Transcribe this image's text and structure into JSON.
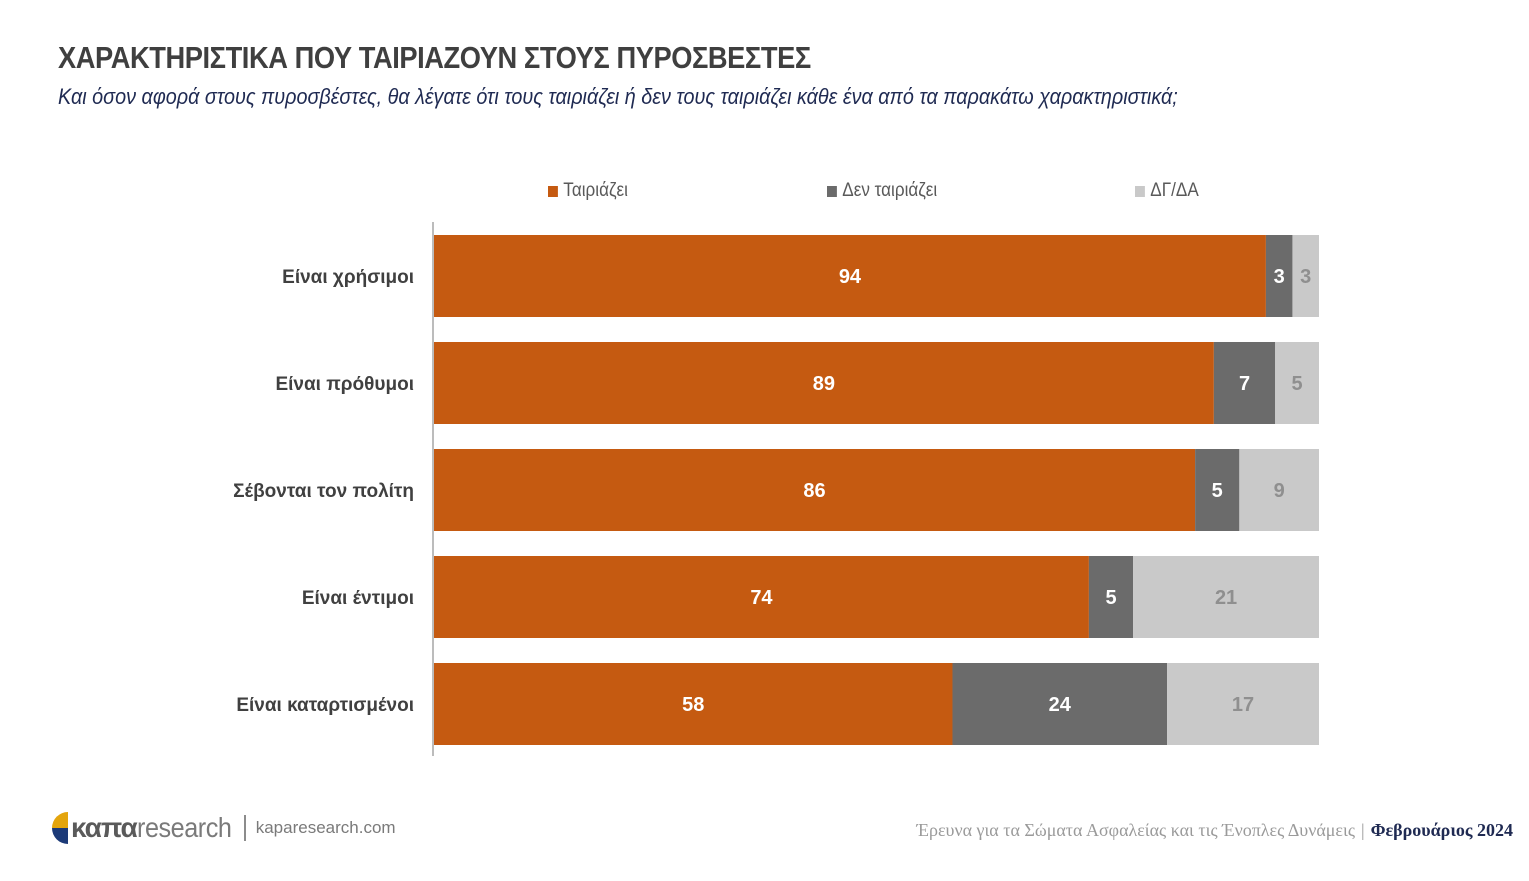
{
  "header": {
    "title": "ΧΑΡΑΚΤΗΡΙΣΤΙΚΑ ΠΟΥ ΤΑΙΡΙΑΖΟΥΝ ΣΤΟΥΣ ΠΥΡΟΣΒΕΣΤΕΣ",
    "subtitle": "Και όσον αφορά στους πυροσβέστες, θα λέγατε ότι τους ταιριάζει ή δεν τους ταιριάζει κάθε ένα από τα παρακάτω χαρακτηριστικά;"
  },
  "chart_data": {
    "type": "bar",
    "orientation": "horizontal",
    "stacked": true,
    "title": "ΧΑΡΑΚΤΗΡΙΣΤΙΚΑ ΠΟΥ ΤΑΙΡΙΑΖΟΥΝ ΣΤΟΥΣ ΠΥΡΟΣΒΕΣΤΕΣ",
    "xlabel": "",
    "ylabel": "",
    "xlim": [
      0,
      100
    ],
    "grid": false,
    "legend_position": "top",
    "categories": [
      "Είναι χρήσιμοι",
      "Είναι πρόθυμοι",
      "Σέβονται τον πολίτη",
      "Είναι έντιμοι",
      "Είναι καταρτισμένοι"
    ],
    "series": [
      {
        "name": "Ταιριάζει",
        "color": "#c55a11",
        "label_color": "#ffffff",
        "values": [
          94,
          89,
          86,
          74,
          58
        ]
      },
      {
        "name": "Δεν ταιριάζει",
        "color": "#6b6b6b",
        "label_color": "#ffffff",
        "values": [
          3,
          7,
          5,
          5,
          24
        ]
      },
      {
        "name": "ΔΓ/ΔΑ",
        "color": "#c9c9c9",
        "label_color": "#8f8f8f",
        "values": [
          3,
          5,
          9,
          21,
          17
        ]
      }
    ]
  },
  "footer": {
    "logo_bold": "καπα",
    "logo_light": "research",
    "url": "kaparesearch.com",
    "study": "Έρευνα για τα Σώματα Ασφαλείας και τις Ένοπλες Δυνάμεις",
    "separator": "|",
    "date": "Φεβρουάριος 2024"
  }
}
